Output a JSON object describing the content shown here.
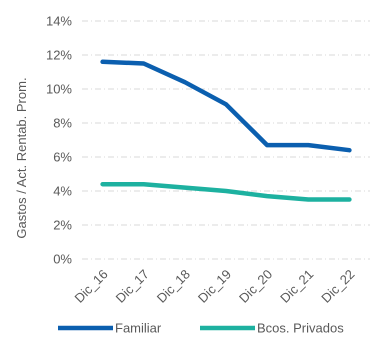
{
  "chart_data": {
    "type": "line",
    "categories": [
      "Dic_16",
      "Dic_17",
      "Dic_18",
      "Dic_19",
      "Dic_20",
      "Dic_21",
      "Dic_22"
    ],
    "series": [
      {
        "name": "Familiar",
        "color": "#0B5FAF",
        "values": [
          11.6,
          11.5,
          10.4,
          9.1,
          6.7,
          6.7,
          6.4
        ]
      },
      {
        "name": "Bcos. Privados",
        "color": "#1DB1A0",
        "values": [
          4.4,
          4.4,
          4.2,
          4.0,
          3.7,
          3.5,
          3.5
        ]
      }
    ],
    "ylabel": "Gastos / Act. Rentab. Prom.",
    "ylim": [
      0,
      14
    ],
    "yticks": [
      "0%",
      "2%",
      "4%",
      "6%",
      "8%",
      "10%",
      "12%",
      "14%"
    ],
    "grid": true,
    "legend_position": "bottom"
  }
}
